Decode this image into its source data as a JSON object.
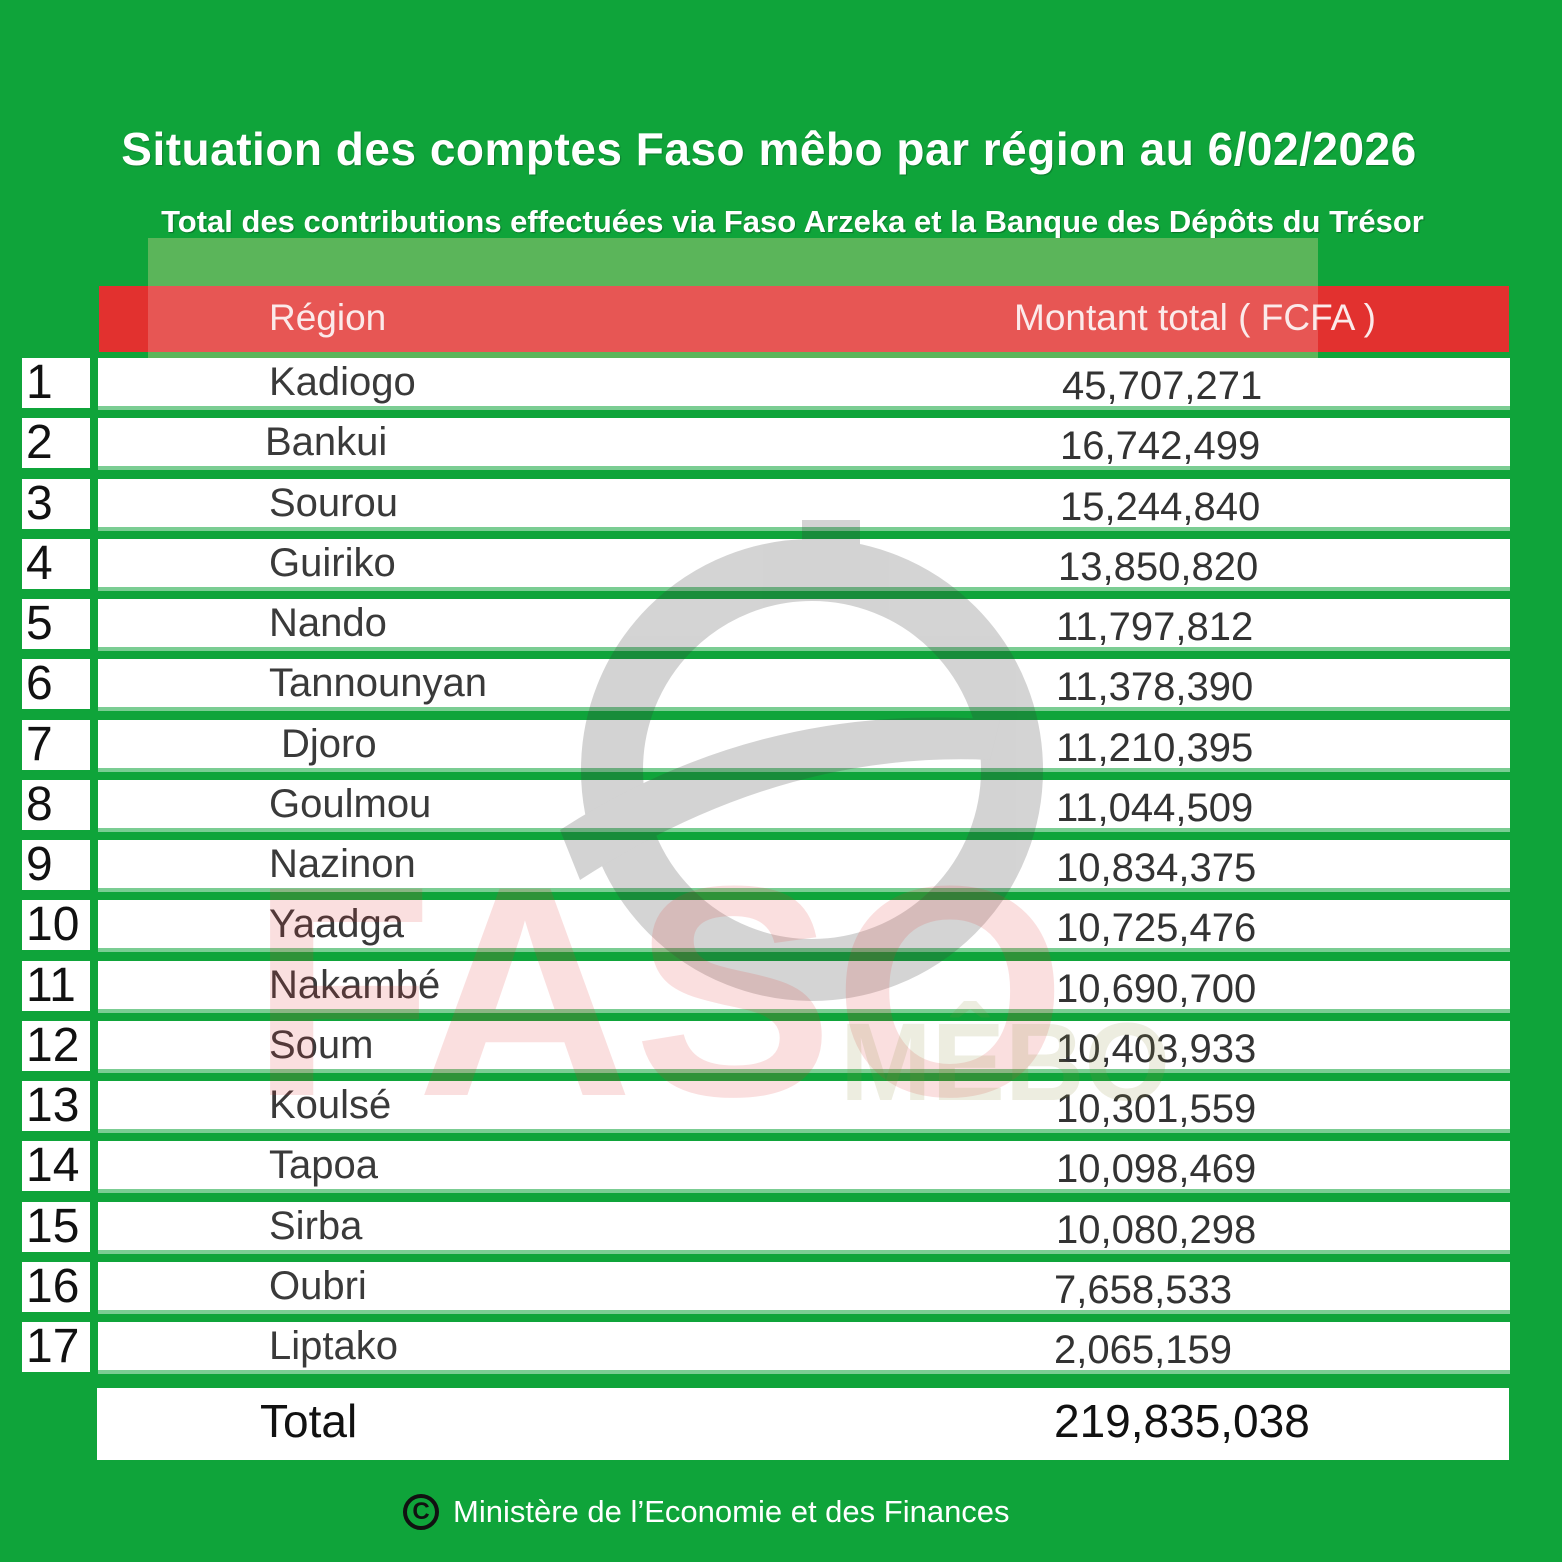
{
  "title": "Situation des comptes Faso mêbo par région au 6/02/2026",
  "subtitle": "Total des contributions effectuées via Faso Arzeka et la Banque des Dépôts du Trésor",
  "footer": "Ministère de l’Economie et des Finances",
  "watermark": {
    "brand": "FASO",
    "brand_suffix": "MÊBO"
  },
  "colors": {
    "background": "#0fa43a",
    "header": "#e2312f",
    "row": "#ffffff"
  },
  "chart_data": {
    "type": "table",
    "columns": [
      "Région",
      "Montant total ( FCFA )"
    ],
    "rows": [
      {
        "rank": "1",
        "region": "Kadiogo",
        "amount": "45,707,271"
      },
      {
        "rank": "2",
        "region": "Bankui",
        "amount": "16,742,499"
      },
      {
        "rank": "3",
        "region": "Sourou",
        "amount": "15,244,840"
      },
      {
        "rank": "4",
        "region": "Guiriko",
        "amount": "13,850,820"
      },
      {
        "rank": "5",
        "region": "Nando",
        "amount": "11,797,812"
      },
      {
        "rank": "6",
        "region": "Tannounyan",
        "amount": "11,378,390"
      },
      {
        "rank": "7",
        "region": "Djoro",
        "amount": "11,210,395"
      },
      {
        "rank": "8",
        "region": "Goulmou",
        "amount": "11,044,509"
      },
      {
        "rank": "9",
        "region": "Nazinon",
        "amount": "10,834,375"
      },
      {
        "rank": "10",
        "region": "Yaadga",
        "amount": "10,725,476"
      },
      {
        "rank": "11",
        "region": "Nakambé",
        "amount": "10,690,700"
      },
      {
        "rank": "12",
        "region": "Soum",
        "amount": "10,403,933"
      },
      {
        "rank": "13",
        "region": "Koulsé",
        "amount": "10,301,559"
      },
      {
        "rank": "14",
        "region": "Tapoa",
        "amount": "10,098,469"
      },
      {
        "rank": "15",
        "region": "Sirba",
        "amount": "10,080,298"
      },
      {
        "rank": "16",
        "region": "Oubri",
        "amount": "7,658,533"
      },
      {
        "rank": "17",
        "region": "Liptako",
        "amount": "2,065,159"
      }
    ],
    "total_label": "Total",
    "total_value": "219,835,038"
  }
}
